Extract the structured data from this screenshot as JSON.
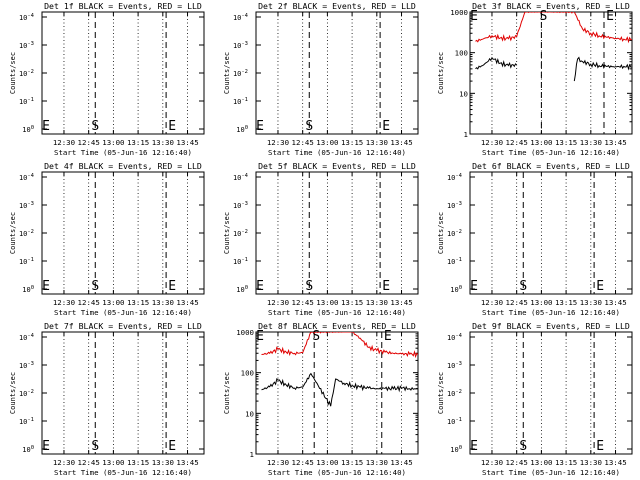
{
  "common": {
    "ylabel": "Counts/sec",
    "xlabel": "Start Time (05-Jun-16 12:16:40)",
    "x_tick_labels": [
      "12:30",
      "12:45",
      "13:00",
      "13:15",
      "13:30",
      "13:45"
    ],
    "y_tick_labels_decades": [
      "10",
      "10",
      "10",
      "10",
      "10"
    ],
    "y_tick_exponents": [
      "0",
      "-1",
      "-2",
      "-3",
      "-4"
    ],
    "marker_start": "S",
    "marker_end": "E",
    "colors": {
      "events": "#000000",
      "lld": "#e00000",
      "axes": "#000000"
    }
  },
  "chart_data": [
    {
      "type": "line",
      "title": "Det 1f BLACK = Events, RED = LLD",
      "x": [
        "12:16:40",
        "13:55"
      ],
      "has_data": false,
      "y_scale": "log",
      "yticks": [
        "10⁻⁴",
        "10⁻³",
        "10⁻²",
        "10⁻¹",
        "10⁰"
      ],
      "marker_x": {
        "S": "12:49",
        "E": "13:32"
      }
    },
    {
      "type": "line",
      "title": "Det 2f BLACK = Events, RED = LLD",
      "x": [
        "12:16:40",
        "13:55"
      ],
      "has_data": false,
      "y_scale": "log",
      "marker_x": {
        "S": "12:49",
        "E": "13:32"
      }
    },
    {
      "type": "line",
      "title": "Det 3f BLACK = Events, RED = LLD",
      "y_scale": "log",
      "ylim": [
        1,
        1000
      ],
      "yticks": [
        "1",
        "10",
        "100",
        "1000"
      ],
      "has_data": true,
      "series": [
        {
          "name": "LLD",
          "color": "#e00000",
          "x": [
            "12:20",
            "12:25",
            "12:30",
            "12:35",
            "12:40",
            "12:45",
            "12:50",
            "13:20",
            "13:25",
            "13:30",
            "13:35",
            "13:40",
            "13:45",
            "13:50",
            "13:55"
          ],
          "values": [
            190,
            220,
            260,
            230,
            220,
            250,
            1000,
            1000,
            380,
            300,
            260,
            240,
            225,
            215,
            210
          ]
        },
        {
          "name": "Events",
          "color": "#000000",
          "x": [
            "12:20",
            "12:25",
            "12:30",
            "12:35",
            "12:40",
            "12:45",
            "12:50",
            "13:20",
            "13:22",
            "13:25",
            "13:30",
            "13:35",
            "13:40",
            "13:45",
            "13:50",
            "13:55"
          ],
          "values": [
            40,
            50,
            75,
            55,
            48,
            50,
            null,
            20,
            70,
            60,
            52,
            48,
            46,
            45,
            46,
            45
          ]
        }
      ],
      "marker_x": {
        "S": "13:00",
        "E": "13:38"
      }
    },
    {
      "type": "line",
      "title": "Det 4f BLACK = Events, RED = LLD",
      "has_data": false,
      "y_scale": "log",
      "marker_x": {
        "S": "12:49",
        "E": "13:32"
      }
    },
    {
      "type": "line",
      "title": "Det 5f BLACK = Events, RED = LLD",
      "has_data": false,
      "y_scale": "log",
      "marker_x": {
        "S": "12:49",
        "E": "13:32"
      }
    },
    {
      "type": "line",
      "title": "Det 6f BLACK = Events, RED = LLD",
      "has_data": false,
      "y_scale": "log",
      "marker_x": {
        "S": "12:49",
        "E": "13:32"
      }
    },
    {
      "type": "line",
      "title": "Det 7f BLACK = Events, RED = LLD",
      "has_data": false,
      "y_scale": "log",
      "marker_x": {
        "S": "12:49",
        "E": "13:32"
      }
    },
    {
      "type": "line",
      "title": "Det 8f BLACK = Events, RED = LLD",
      "y_scale": "log",
      "ylim": [
        1,
        1000
      ],
      "yticks": [
        "1",
        "10",
        "100",
        "1000"
      ],
      "has_data": true,
      "series": [
        {
          "name": "LLD",
          "color": "#e00000",
          "x": [
            "12:20",
            "12:25",
            "12:30",
            "12:35",
            "12:40",
            "12:45",
            "12:50",
            "13:15",
            "13:20",
            "13:25",
            "13:30",
            "13:35",
            "13:40",
            "13:45",
            "13:50",
            "13:55"
          ],
          "values": [
            280,
            300,
            380,
            320,
            300,
            310,
            1000,
            1000,
            700,
            420,
            350,
            320,
            300,
            290,
            285,
            280
          ]
        },
        {
          "name": "Events",
          "color": "#000000",
          "x": [
            "12:20",
            "12:25",
            "12:30",
            "12:35",
            "12:40",
            "12:45",
            "12:50",
            "13:02",
            "13:05",
            "13:10",
            "13:15",
            "13:20",
            "13:25",
            "13:30",
            "13:35",
            "13:40",
            "13:45",
            "13:50",
            "13:55"
          ],
          "values": [
            38,
            45,
            65,
            50,
            42,
            44,
            95,
            15,
            70,
            55,
            48,
            44,
            42,
            40,
            41,
            40,
            42,
            40,
            40
          ]
        }
      ],
      "marker_x": {
        "S": "12:52",
        "E": "13:33"
      }
    },
    {
      "type": "line",
      "title": "Det 9f BLACK = Events, RED = LLD",
      "has_data": false,
      "y_scale": "log",
      "marker_x": {
        "S": "12:49",
        "E": "13:32"
      }
    }
  ]
}
